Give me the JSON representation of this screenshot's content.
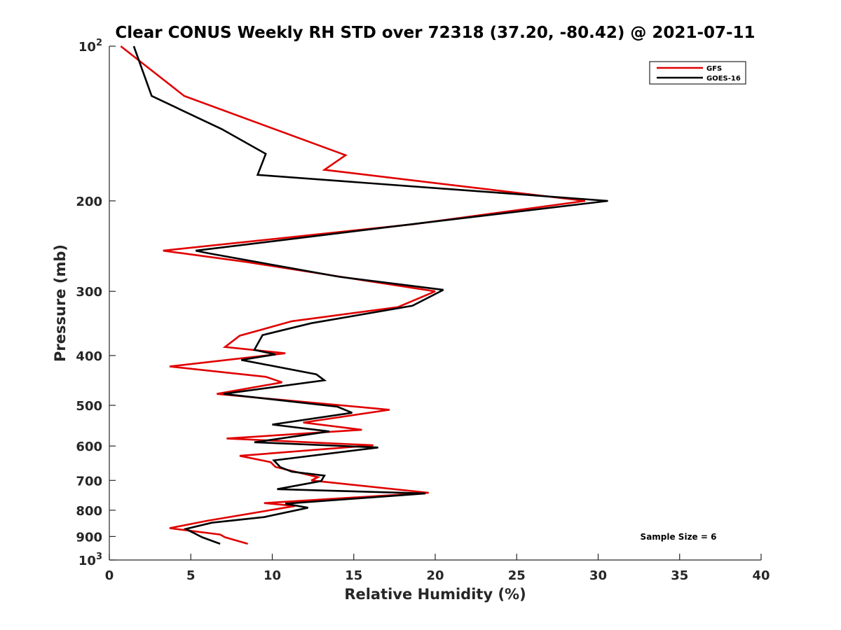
{
  "chart_data": {
    "type": "line",
    "title": "Clear CONUS Weekly RH STD over 72318 (37.20, -80.42) @ 2021-07-11",
    "xlabel": "Relative Humidity (%)",
    "ylabel": "Pressure (mb)",
    "xlim": [
      0,
      40
    ],
    "ylim": [
      100,
      1000
    ],
    "y_scale": "log",
    "y_reversed": true,
    "x_ticks": [
      0,
      5,
      10,
      15,
      20,
      25,
      30,
      35,
      40
    ],
    "y_ticks": [
      {
        "value": 100,
        "base": "10",
        "exp": "2"
      },
      {
        "value": 200,
        "label": "200"
      },
      {
        "value": 300,
        "label": "300"
      },
      {
        "value": 400,
        "label": "400"
      },
      {
        "value": 500,
        "label": "500"
      },
      {
        "value": 600,
        "label": "600"
      },
      {
        "value": 700,
        "label": "700"
      },
      {
        "value": 800,
        "label": "800"
      },
      {
        "value": 900,
        "label": "900"
      },
      {
        "value": 1000,
        "base": "10",
        "exp": "3"
      }
    ],
    "grid": false,
    "legend_position": "top-right",
    "annotation": "Sample Size = 6",
    "series": [
      {
        "name": "GFS",
        "color": "#e00000",
        "points": [
          [
            0.7,
            100
          ],
          [
            4.6,
            125
          ],
          [
            14.5,
            163
          ],
          [
            13.2,
            174
          ],
          [
            29.2,
            200
          ],
          [
            18.7,
            222
          ],
          [
            3.3,
            250
          ],
          [
            8.4,
            263
          ],
          [
            14.2,
            281
          ],
          [
            20.0,
            300
          ],
          [
            17.7,
            322
          ],
          [
            11.2,
            343
          ],
          [
            8.0,
            366
          ],
          [
            7.1,
            385
          ],
          [
            10.8,
            396
          ],
          [
            3.7,
            420
          ],
          [
            9.6,
            440
          ],
          [
            10.6,
            451
          ],
          [
            6.6,
            475
          ],
          [
            17.2,
            510
          ],
          [
            11.9,
            540
          ],
          [
            15.5,
            558
          ],
          [
            7.2,
            580
          ],
          [
            16.2,
            598
          ],
          [
            8.0,
            627
          ],
          [
            9.9,
            645
          ],
          [
            10.2,
            659
          ],
          [
            12.8,
            690
          ],
          [
            12.4,
            700
          ],
          [
            19.6,
            740
          ],
          [
            9.5,
            775
          ],
          [
            11.4,
            785
          ],
          [
            6.0,
            839
          ],
          [
            3.7,
            867
          ],
          [
            6.8,
            892
          ],
          [
            7.1,
            903
          ],
          [
            8.5,
            930
          ]
        ]
      },
      {
        "name": "GOES-16",
        "color": "#000000",
        "points": [
          [
            1.5,
            100
          ],
          [
            2.6,
            125
          ],
          [
            6.9,
            145
          ],
          [
            9.6,
            162
          ],
          [
            9.1,
            178
          ],
          [
            30.6,
            200
          ],
          [
            19.1,
            221
          ],
          [
            5.3,
            250
          ],
          [
            6.1,
            253
          ],
          [
            14.1,
            281
          ],
          [
            20.5,
            298
          ],
          [
            18.6,
            320
          ],
          [
            12.4,
            346
          ],
          [
            9.4,
            365
          ],
          [
            8.9,
            390
          ],
          [
            10.2,
            398
          ],
          [
            8.1,
            408
          ],
          [
            12.7,
            435
          ],
          [
            13.2,
            447
          ],
          [
            7.0,
            475
          ],
          [
            14.0,
            503
          ],
          [
            14.9,
            517
          ],
          [
            10.0,
            545
          ],
          [
            13.5,
            562
          ],
          [
            8.9,
            590
          ],
          [
            16.5,
            604
          ],
          [
            10.1,
            640
          ],
          [
            10.5,
            660
          ],
          [
            11.2,
            673
          ],
          [
            13.2,
            685
          ],
          [
            13.0,
            702
          ],
          [
            10.3,
            728
          ],
          [
            19.4,
            742
          ],
          [
            10.8,
            777
          ],
          [
            12.2,
            791
          ],
          [
            9.5,
            825
          ],
          [
            6.3,
            846
          ],
          [
            4.7,
            870
          ],
          [
            5.0,
            880
          ],
          [
            5.7,
            903
          ],
          [
            6.8,
            930
          ]
        ]
      }
    ]
  }
}
